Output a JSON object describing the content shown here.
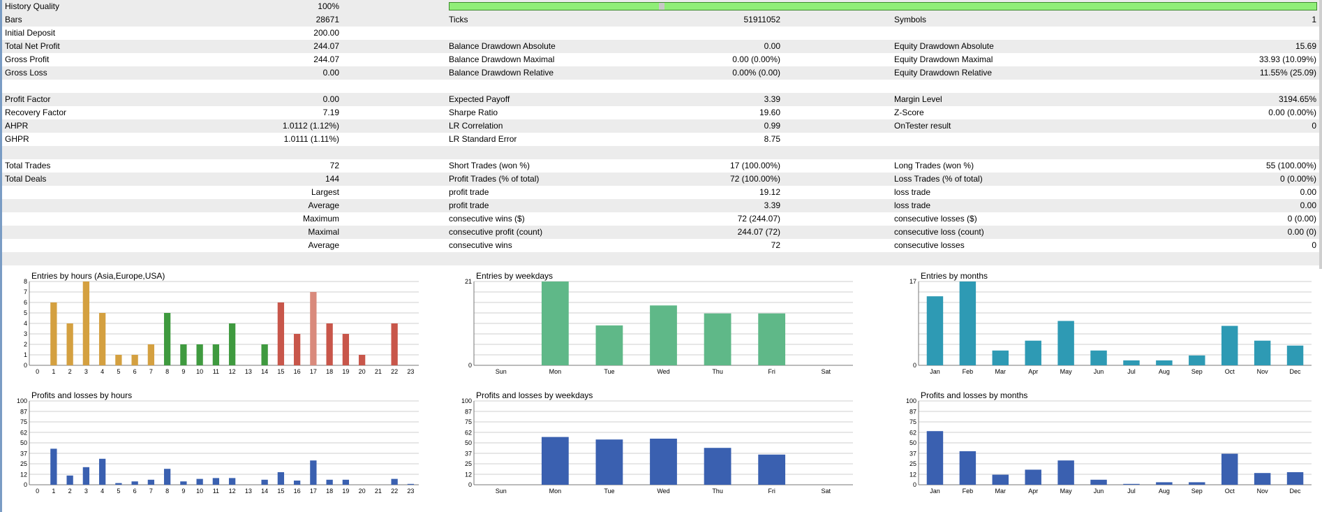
{
  "history_quality": {
    "label": "History Quality",
    "value": "100%",
    "bar_fill_fraction": 1.0,
    "bar_color": "#90ee78"
  },
  "stats_rows": [
    {
      "shade": true,
      "c1": "Bars",
      "v1": "28671",
      "c2": "Ticks",
      "v2": "51911052",
      "c3": "Symbols",
      "v3": "1"
    },
    {
      "shade": false,
      "c1": "Initial Deposit",
      "v1": "200.00",
      "c2": "",
      "v2": "",
      "c3": "",
      "v3": ""
    },
    {
      "shade": true,
      "c1": "Total Net Profit",
      "v1": "244.07",
      "c2": "Balance Drawdown Absolute",
      "v2": "0.00",
      "c3": "Equity Drawdown Absolute",
      "v3": "15.69"
    },
    {
      "shade": false,
      "c1": "Gross Profit",
      "v1": "244.07",
      "c2": "Balance Drawdown Maximal",
      "v2": "0.00 (0.00%)",
      "c3": "Equity Drawdown Maximal",
      "v3": "33.93 (10.09%)"
    },
    {
      "shade": true,
      "c1": "Gross Loss",
      "v1": "0.00",
      "c2": "Balance Drawdown Relative",
      "v2": "0.00% (0.00)",
      "c3": "Equity Drawdown Relative",
      "v3": "11.55% (25.09)"
    },
    {
      "shade": false,
      "c1": "",
      "v1": "",
      "c2": "",
      "v2": "",
      "c3": "",
      "v3": ""
    },
    {
      "shade": true,
      "c1": "Profit Factor",
      "v1": "0.00",
      "c2": "Expected Payoff",
      "v2": "3.39",
      "c3": "Margin Level",
      "v3": "3194.65%"
    },
    {
      "shade": false,
      "c1": "Recovery Factor",
      "v1": "7.19",
      "c2": "Sharpe Ratio",
      "v2": "19.60",
      "c3": "Z-Score",
      "v3": "0.00 (0.00%)"
    },
    {
      "shade": true,
      "c1": "AHPR",
      "v1": "1.0112 (1.12%)",
      "c2": "LR Correlation",
      "v2": "0.99",
      "c3": "OnTester result",
      "v3": "0"
    },
    {
      "shade": false,
      "c1": "GHPR",
      "v1": "1.0111 (1.11%)",
      "c2": "LR Standard Error",
      "v2": "8.75",
      "c3": "",
      "v3": ""
    },
    {
      "shade": true,
      "c1": "",
      "v1": "",
      "c2": "",
      "v2": "",
      "c3": "",
      "v3": ""
    },
    {
      "shade": false,
      "c1": "Total Trades",
      "v1": "72",
      "c2": "Short Trades (won %)",
      "v2": "17 (100.00%)",
      "c3": "Long Trades (won %)",
      "v3": "55 (100.00%)"
    },
    {
      "shade": true,
      "c1": "Total Deals",
      "v1": "144",
      "c2": "Profit Trades (% of total)",
      "v2": "72 (100.00%)",
      "c3": "Loss Trades (% of total)",
      "v3": "0 (0.00%)"
    },
    {
      "shade": false,
      "c1": "",
      "v1": "Largest",
      "c2": "profit trade",
      "v2": "19.12",
      "c3": "loss trade",
      "v3": "0.00"
    },
    {
      "shade": true,
      "c1": "",
      "v1": "Average",
      "c2": "profit trade",
      "v2": "3.39",
      "c3": "loss trade",
      "v3": "0.00"
    },
    {
      "shade": false,
      "c1": "",
      "v1": "Maximum",
      "c2": "consecutive wins ($)",
      "v2": "72 (244.07)",
      "c3": "consecutive losses ($)",
      "v3": "0 (0.00)"
    },
    {
      "shade": true,
      "c1": "",
      "v1": "Maximal",
      "c2": "consecutive profit (count)",
      "v2": "244.07 (72)",
      "c3": "consecutive loss (count)",
      "v3": "0.00 (0)"
    },
    {
      "shade": false,
      "c1": "",
      "v1": "Average",
      "c2": "consecutive wins",
      "v2": "72",
      "c3": "consecutive losses",
      "v3": "0"
    },
    {
      "shade": true,
      "c1": "",
      "v1": "",
      "c2": "",
      "v2": "",
      "c3": "",
      "v3": ""
    }
  ],
  "chart_data": [
    {
      "id": "entries-hours",
      "type": "bar",
      "title": "Entries by hours (Asia,Europe,USA)",
      "categories": [
        "0",
        "1",
        "2",
        "3",
        "4",
        "5",
        "6",
        "7",
        "8",
        "9",
        "10",
        "11",
        "12",
        "13",
        "14",
        "15",
        "16",
        "17",
        "18",
        "19",
        "20",
        "21",
        "22",
        "23"
      ],
      "values": [
        0,
        6,
        4,
        8,
        5,
        1,
        1,
        2,
        5,
        2,
        2,
        2,
        4,
        0,
        2,
        6,
        3,
        7,
        4,
        3,
        1,
        0,
        4,
        0
      ],
      "yticks": [
        "0",
        "1",
        "2",
        "3",
        "4",
        "5",
        "6",
        "7",
        "8"
      ],
      "ylim": [
        0,
        8
      ],
      "colors": [
        "#d4a040",
        "#d4a040",
        "#d4a040",
        "#d4a040",
        "#d4a040",
        "#d4a040",
        "#d4a040",
        "#d4a040",
        "#3f9a3f",
        "#3f9a3f",
        "#3f9a3f",
        "#3f9a3f",
        "#3f9a3f",
        "#3f9a3f",
        "#3f9a3f",
        "#c8564a",
        "#c8564a",
        "#d98a7c",
        "#c8564a",
        "#c8564a",
        "#c8564a",
        "#c8564a",
        "#c8564a",
        "#c8564a"
      ]
    },
    {
      "id": "entries-weekdays",
      "type": "bar",
      "title": "Entries by weekdays",
      "categories": [
        "Sun",
        "Mon",
        "Tue",
        "Wed",
        "Thu",
        "Fri",
        "Sat"
      ],
      "values": [
        0,
        21,
        10,
        15,
        13,
        13,
        0
      ],
      "yticks": [
        "0",
        "21"
      ],
      "ylim": [
        0,
        21
      ],
      "colors": [
        "#5fb888",
        "#5fb888",
        "#5fb888",
        "#5fb888",
        "#5fb888",
        "#5fb888",
        "#5fb888"
      ]
    },
    {
      "id": "entries-months",
      "type": "bar",
      "title": "Entries by months",
      "categories": [
        "Jan",
        "Feb",
        "Mar",
        "Apr",
        "May",
        "Jun",
        "Jul",
        "Aug",
        "Sep",
        "Oct",
        "Nov",
        "Dec"
      ],
      "values": [
        14,
        17,
        3,
        5,
        9,
        3,
        1,
        1,
        2,
        8,
        5,
        4
      ],
      "yticks": [
        "0",
        "17"
      ],
      "ylim": [
        0,
        17
      ],
      "colors": [
        "#2e9ab4",
        "#2e9ab4",
        "#2e9ab4",
        "#2e9ab4",
        "#2e9ab4",
        "#2e9ab4",
        "#2e9ab4",
        "#2e9ab4",
        "#2e9ab4",
        "#2e9ab4",
        "#2e9ab4",
        "#2e9ab4"
      ]
    },
    {
      "id": "pl-hours",
      "type": "bar",
      "title": "Profits and losses by hours",
      "categories": [
        "0",
        "1",
        "2",
        "3",
        "4",
        "5",
        "6",
        "7",
        "8",
        "9",
        "10",
        "11",
        "12",
        "13",
        "14",
        "15",
        "16",
        "17",
        "18",
        "19",
        "20",
        "21",
        "22",
        "23"
      ],
      "values": [
        0,
        43,
        11,
        21,
        31,
        2,
        4,
        6,
        19,
        4,
        7,
        8,
        8,
        0,
        6,
        15,
        5,
        29,
        6,
        6,
        0,
        0,
        7,
        1
      ],
      "yticks": [
        "0",
        "12",
        "25",
        "37",
        "50",
        "62",
        "75",
        "87",
        "100"
      ],
      "ylim": [
        0,
        100
      ],
      "colors": [
        "#3a60b0"
      ]
    },
    {
      "id": "pl-weekdays",
      "type": "bar",
      "title": "Profits and losses by weekdays",
      "categories": [
        "Sun",
        "Mon",
        "Tue",
        "Wed",
        "Thu",
        "Fri",
        "Sat"
      ],
      "values": [
        0,
        57,
        54,
        55,
        44,
        36,
        0
      ],
      "yticks": [
        "0",
        "12",
        "25",
        "37",
        "50",
        "62",
        "75",
        "87",
        "100"
      ],
      "ylim": [
        0,
        100
      ],
      "colors": [
        "#3a60b0"
      ]
    },
    {
      "id": "pl-months",
      "type": "bar",
      "title": "Profits and losses by months",
      "categories": [
        "Jan",
        "Feb",
        "Mar",
        "Apr",
        "May",
        "Jun",
        "Jul",
        "Aug",
        "Sep",
        "Oct",
        "Nov",
        "Dec"
      ],
      "values": [
        64,
        40,
        12,
        18,
        29,
        6,
        1,
        3,
        3,
        37,
        14,
        15
      ],
      "yticks": [
        "0",
        "12",
        "25",
        "37",
        "50",
        "62",
        "75",
        "87",
        "100"
      ],
      "ylim": [
        0,
        100
      ],
      "colors": [
        "#3a60b0"
      ]
    }
  ]
}
